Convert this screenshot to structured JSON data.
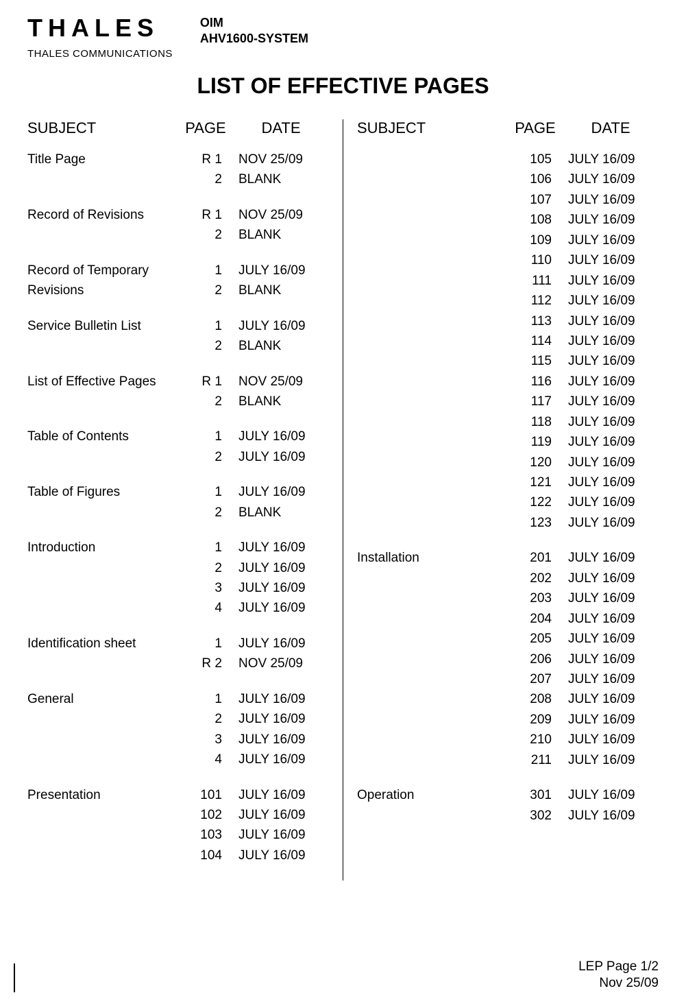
{
  "header": {
    "logo_text": "THALES",
    "logo_subtitle": "THALES COMMUNICATIONS",
    "doc_line1": "OIM",
    "doc_line2": "AHV1600-SYSTEM"
  },
  "title": "LIST OF EFFECTIVE PAGES",
  "column_headers": {
    "subject": "SUBJECT",
    "page": "PAGE",
    "date": "DATE"
  },
  "left_sections": [
    {
      "subject": "Title Page",
      "rows": [
        {
          "page": "R 1",
          "date": "NOV 25/09"
        },
        {
          "page": "2",
          "date": "BLANK"
        }
      ]
    },
    {
      "subject": "Record of Revisions",
      "rows": [
        {
          "page": "R 1",
          "date": "NOV 25/09"
        },
        {
          "page": "2",
          "date": "BLANK"
        }
      ]
    },
    {
      "subject": "Record of Temporary Revisions",
      "subject_lines": [
        "Record of Temporary",
        "Revisions"
      ],
      "rows": [
        {
          "page": "1",
          "date": "JULY 16/09"
        },
        {
          "page": "2",
          "date": "BLANK"
        }
      ]
    },
    {
      "subject": "Service Bulletin List",
      "rows": [
        {
          "page": "1",
          "date": "JULY 16/09"
        },
        {
          "page": "2",
          "date": "BLANK"
        }
      ]
    },
    {
      "subject": "List of Effective Pages",
      "rows": [
        {
          "page": "R 1",
          "date": "NOV 25/09"
        },
        {
          "page": "2",
          "date": "BLANK"
        }
      ]
    },
    {
      "subject": "Table of Contents",
      "rows": [
        {
          "page": "1",
          "date": "JULY 16/09"
        },
        {
          "page": "2",
          "date": "JULY 16/09"
        }
      ]
    },
    {
      "subject": "Table of Figures",
      "rows": [
        {
          "page": "1",
          "date": "JULY 16/09"
        },
        {
          "page": "2",
          "date": "BLANK"
        }
      ]
    },
    {
      "subject": "Introduction",
      "rows": [
        {
          "page": "1",
          "date": "JULY 16/09"
        },
        {
          "page": "2",
          "date": "JULY 16/09"
        },
        {
          "page": "3",
          "date": "JULY 16/09"
        },
        {
          "page": "4",
          "date": "JULY 16/09"
        }
      ]
    },
    {
      "subject": "Identification sheet",
      "rows": [
        {
          "page": "1",
          "date": "JULY 16/09"
        },
        {
          "page": "R 2",
          "date": "NOV 25/09"
        }
      ]
    },
    {
      "subject": "General",
      "rows": [
        {
          "page": "1",
          "date": "JULY 16/09"
        },
        {
          "page": "2",
          "date": "JULY 16/09"
        },
        {
          "page": "3",
          "date": "JULY 16/09"
        },
        {
          "page": "4",
          "date": "JULY 16/09"
        }
      ]
    },
    {
      "subject": "Presentation",
      "rows": [
        {
          "page": "101",
          "date": "JULY 16/09"
        },
        {
          "page": "102",
          "date": "JULY 16/09"
        },
        {
          "page": "103",
          "date": "JULY 16/09"
        },
        {
          "page": "104",
          "date": "JULY 16/09"
        }
      ]
    }
  ],
  "right_sections": [
    {
      "subject": "",
      "rows": [
        {
          "page": "105",
          "date": "JULY 16/09"
        },
        {
          "page": "106",
          "date": "JULY 16/09"
        },
        {
          "page": "107",
          "date": "JULY 16/09"
        },
        {
          "page": "108",
          "date": "JULY 16/09"
        },
        {
          "page": "109",
          "date": "JULY 16/09"
        },
        {
          "page": "110",
          "date": "JULY 16/09"
        },
        {
          "page": "111",
          "date": "JULY 16/09"
        },
        {
          "page": "112",
          "date": "JULY 16/09"
        },
        {
          "page": "113",
          "date": "JULY 16/09"
        },
        {
          "page": "114",
          "date": "JULY 16/09"
        },
        {
          "page": "115",
          "date": "JULY 16/09"
        },
        {
          "page": "116",
          "date": "JULY 16/09"
        },
        {
          "page": "117",
          "date": "JULY 16/09"
        },
        {
          "page": "118",
          "date": "JULY 16/09"
        },
        {
          "page": "119",
          "date": "JULY 16/09"
        },
        {
          "page": "120",
          "date": "JULY 16/09"
        },
        {
          "page": "121",
          "date": "JULY 16/09"
        },
        {
          "page": "122",
          "date": "JULY 16/09"
        },
        {
          "page": "123",
          "date": "JULY 16/09"
        }
      ]
    },
    {
      "subject": "Installation",
      "rows": [
        {
          "page": "201",
          "date": "JULY 16/09"
        },
        {
          "page": "202",
          "date": "JULY 16/09"
        },
        {
          "page": "203",
          "date": "JULY 16/09"
        },
        {
          "page": "204",
          "date": "JULY 16/09"
        },
        {
          "page": "205",
          "date": "JULY 16/09"
        },
        {
          "page": "206",
          "date": "JULY 16/09"
        },
        {
          "page": "207",
          "date": "JULY 16/09"
        },
        {
          "page": "208",
          "date": "JULY 16/09"
        },
        {
          "page": "209",
          "date": "JULY 16/09"
        },
        {
          "page": "210",
          "date": "JULY 16/09"
        },
        {
          "page": "211",
          "date": "JULY 16/09"
        }
      ]
    },
    {
      "subject": "Operation",
      "rows": [
        {
          "page": "301",
          "date": "JULY 16/09"
        },
        {
          "page": "302",
          "date": "JULY 16/09"
        }
      ]
    }
  ],
  "footer": {
    "line1": "LEP Page 1/2",
    "line2": "Nov 25/09"
  }
}
